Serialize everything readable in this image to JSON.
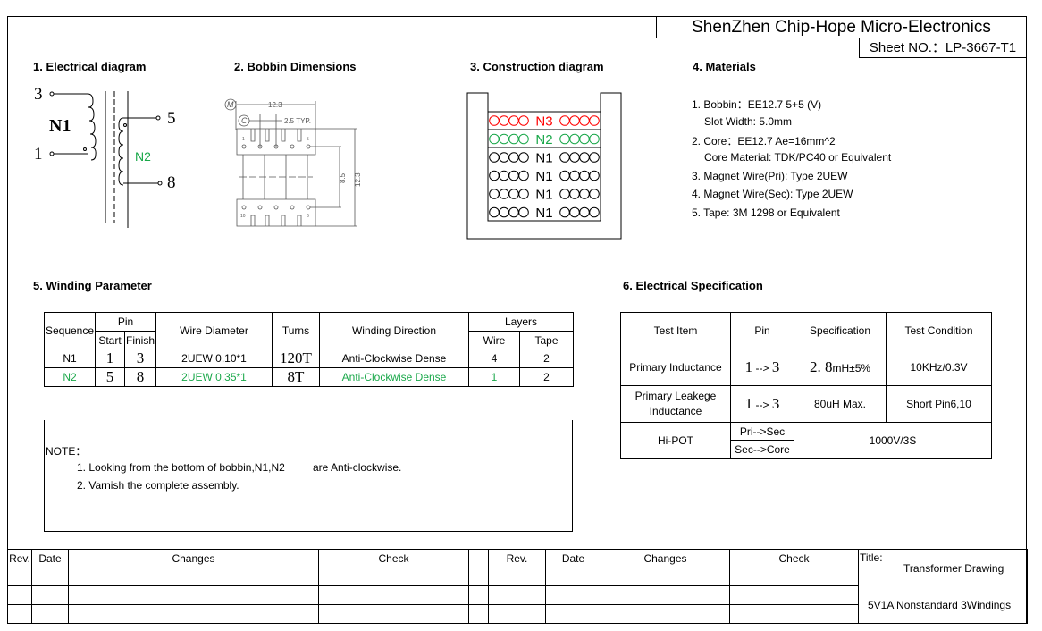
{
  "header": {
    "company": "ShenZhen Chip-Hope Micro-Electronics",
    "sheet_no": "Sheet NO.：LP-3667-T1"
  },
  "sections": {
    "s1": "1. Electrical diagram",
    "s2": "2. Bobbin Dimensions",
    "s3": "3. Construction diagram",
    "s4": "4. Materials",
    "s5": "5. Winding Parameter",
    "s6": "6. Electrical Specification"
  },
  "electrical": {
    "pin3": "3",
    "pin1": "1",
    "pin5": "5",
    "pin8": "8",
    "n1": "N1",
    "n2": "N2"
  },
  "bobbin": {
    "width": "12.3",
    "pitch": "2.5 TYP.",
    "row_span": "8.5",
    "height": "12.3",
    "m": "M",
    "c": "C",
    "p1": "1",
    "p5": "5",
    "p10": "10",
    "p6": "6"
  },
  "construction": {
    "layers": [
      {
        "label": "N3",
        "color": "#ff0000"
      },
      {
        "label": "N2",
        "color": "#1aa84a"
      },
      {
        "label": "N1",
        "color": "#000000"
      },
      {
        "label": "N1",
        "color": "#000000"
      },
      {
        "label": "N1",
        "color": "#000000"
      },
      {
        "label": "N1",
        "color": "#000000"
      }
    ]
  },
  "materials": [
    "1. Bobbin：EE12.7 5+5 (V)",
    "Slot Width: 5.0mm",
    "2. Core：EE12.7  Ae=16mm^2",
    "Core Material: TDK/PC40 or Equivalent",
    "3. Magnet Wire(Pri): Type 2UEW",
    "4. Magnet Wire(Sec): Type 2UEW",
    "5. Tape: 3M 1298 or Equivalent"
  ],
  "winding": {
    "headers": {
      "sequence": "Sequence",
      "pin": "Pin",
      "start": "Start",
      "finish": "Finish",
      "wire": "Wire Diameter",
      "turns": "Turns",
      "direction": "Winding Direction",
      "layers": "Layers",
      "lwire": "Wire",
      "ltape": "Tape"
    },
    "rows": [
      {
        "seq": "N1",
        "start": "1",
        "finish": "3",
        "wire": "2UEW 0.10*1",
        "turns": "120T",
        "dir": "Anti-Clockwise Dense",
        "lw": "4",
        "lt": "2"
      },
      {
        "seq": "N2",
        "start": "5",
        "finish": "8",
        "wire": "2UEW 0.35*1",
        "turns": "8T",
        "dir": "Anti-Clockwise Dense",
        "lw": "1",
        "lt": "2"
      }
    ]
  },
  "spec": {
    "headers": [
      "Test Item",
      "Pin",
      "Specification",
      "Test Condition"
    ],
    "r1": {
      "item": "Primary Inductance",
      "pa": "1",
      "arrow": " --> ",
      "pb": "3",
      "val": "2. 8",
      "unit": "mH±5%",
      "cond": "10KHz/0.3V"
    },
    "r2": {
      "item1": "Primary Leakege",
      "item2": "Inductance",
      "pa": "1",
      "arrow": " --> ",
      "pb": "3",
      "val": "80uH Max.",
      "cond": "Short Pin6,10"
    },
    "r3": {
      "item": "Hi-POT",
      "p1": "Pri-->Sec",
      "p2": "Sec-->Core",
      "val": "1000V/3S"
    }
  },
  "notes": {
    "title": "NOTE：",
    "n1a": "1. Looking from the bottom of bobbin,N1,N2",
    "n1b": "are Anti-clockwise.",
    "n2": "2. Varnish the complete assembly."
  },
  "revision": {
    "rev": "Rev.",
    "date": "Date",
    "changes": "Changes",
    "check": "Check",
    "title_label": "Title:",
    "title1": "Transformer Drawing",
    "title2": "5V1A Nonstandard 3Windings"
  },
  "colors": {
    "green": "#1aa84a",
    "red": "#ff0000"
  }
}
